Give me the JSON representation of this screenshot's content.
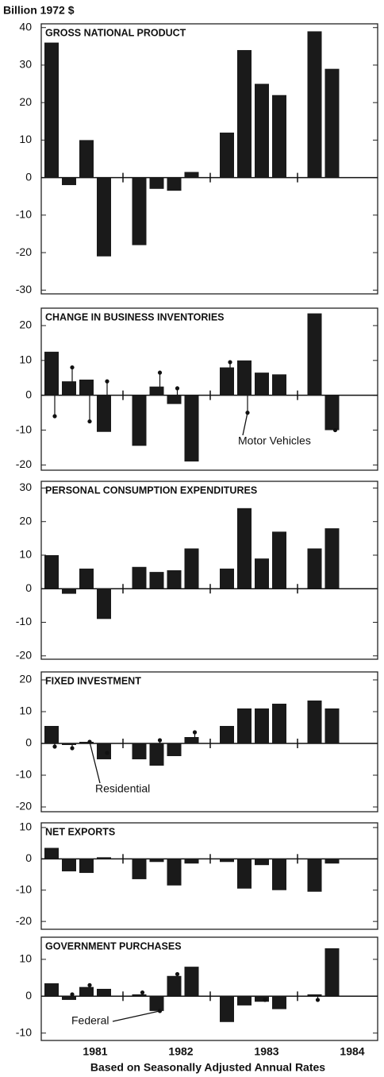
{
  "y_axis_label": "Billion 1972 $",
  "x_axis_label": "Based on Seasonally Adjusted Annual Rates",
  "years": [
    "1981",
    "1982",
    "1983",
    "1984"
  ],
  "chart_data": [
    {
      "type": "bar",
      "title": "GROSS NATIONAL PRODUCT",
      "color": "#1a1a1a",
      "values": [
        36,
        -2,
        10,
        -21,
        -18,
        -3,
        -3.5,
        1.5,
        12,
        34,
        25,
        22,
        39,
        29
      ],
      "ylim": [
        -31,
        41
      ],
      "yticks": [
        40,
        30,
        20,
        10,
        0,
        -10,
        -20,
        -30
      ]
    },
    {
      "type": "bar",
      "title": "CHANGE IN BUSINESS INVENTORIES",
      "color": "#1a1a1a",
      "values": [
        12.5,
        4,
        4.5,
        -10.5,
        -14.5,
        2.5,
        -2.5,
        -19,
        8,
        10,
        6.5,
        6,
        23.5,
        -10
      ],
      "markers": {
        "name": "Motor Vehicles",
        "values": [
          -6,
          8,
          -7.5,
          4,
          null,
          6.5,
          2,
          null,
          9.5,
          -5,
          null,
          null,
          null,
          -10
        ]
      },
      "ylim": [
        -21.5,
        25
      ],
      "yticks": [
        20,
        10,
        0,
        -10,
        -20
      ]
    },
    {
      "type": "bar",
      "title": "PERSONAL CONSUMPTION EXPENDITURES",
      "color": "#1a1a1a",
      "values": [
        10,
        -1.5,
        6,
        -9,
        6.5,
        5,
        5.5,
        12,
        6,
        24,
        9,
        17,
        12,
        18
      ],
      "ylim": [
        -21,
        32
      ],
      "yticks": [
        30,
        20,
        10,
        0,
        -10,
        -20
      ]
    },
    {
      "type": "bar",
      "title": "FIXED INVESTMENT",
      "color": "#1a1a1a",
      "values": [
        5.5,
        -0.5,
        0.5,
        -5,
        -5,
        -7,
        -4,
        2,
        5.5,
        11,
        11,
        12.5,
        13.5,
        11
      ],
      "markers": {
        "name": "Residential",
        "values": [
          -1,
          -1.5,
          0.5,
          -3,
          null,
          1,
          null,
          3.5,
          null,
          null,
          null,
          null,
          null,
          null
        ]
      },
      "ylim": [
        -21.5,
        22.5
      ],
      "yticks": [
        20,
        10,
        0,
        -10,
        -20
      ]
    },
    {
      "type": "bar",
      "title": "NET EXPORTS",
      "color": "#1a1a1a",
      "values": [
        3.5,
        -4,
        -4.5,
        0.5,
        -6.5,
        -1,
        -8.5,
        -1.5,
        -1,
        -9.5,
        -2,
        -10,
        -10.5,
        -1.5
      ],
      "ylim": [
        -22.5,
        11.5
      ],
      "yticks": [
        10,
        0,
        -10,
        -20
      ]
    },
    {
      "type": "bar",
      "title": "GOVERNMENT PURCHASES",
      "color": "#1a1a1a",
      "values": [
        3.5,
        -1,
        2.5,
        2,
        0.5,
        -4,
        5.5,
        8,
        -7,
        -2.5,
        -1.5,
        -3.5,
        0.5,
        13
      ],
      "markers": {
        "name": "Federal",
        "values": [
          null,
          0.5,
          3,
          null,
          1,
          -4,
          6,
          null,
          null,
          null,
          -1,
          null,
          -1,
          null
        ]
      },
      "ylim": [
        -12,
        16
      ],
      "yticks": [
        10,
        0,
        -10
      ]
    }
  ]
}
